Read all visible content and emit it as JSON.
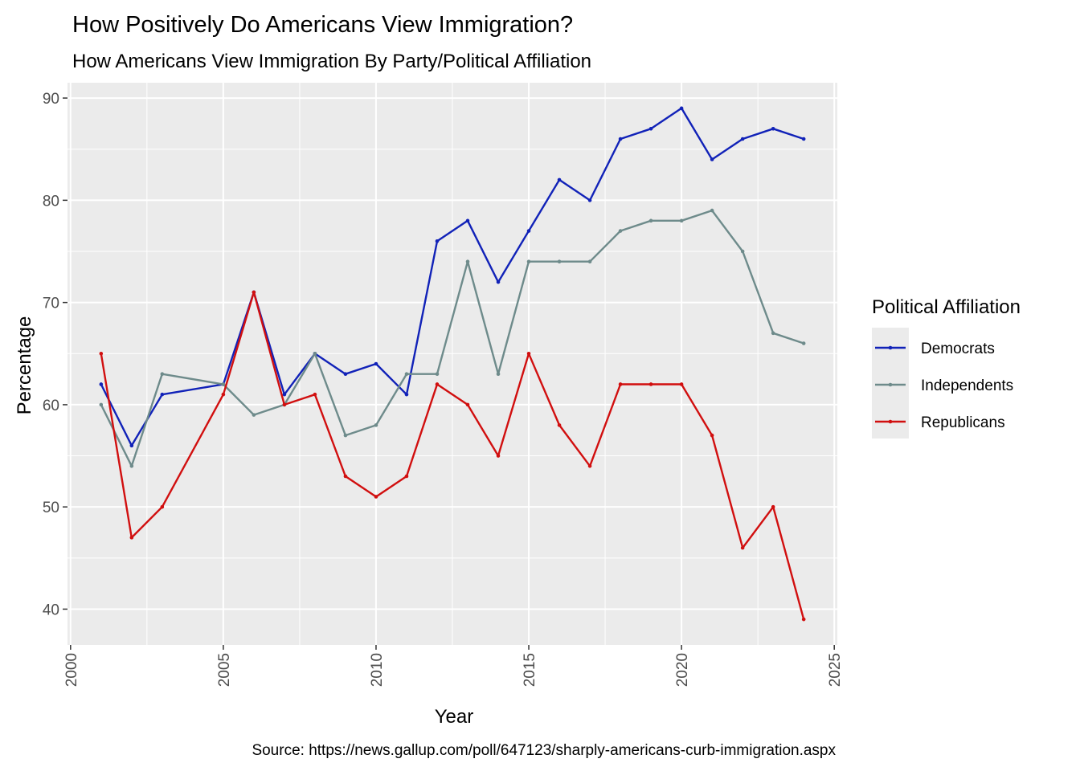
{
  "chart_data": {
    "type": "line",
    "title": "How Positively Do Americans View Immigration?",
    "subtitle": "How Americans View Immigration By Party/Political Affiliation",
    "xlabel": "Year",
    "ylabel": "Percentage",
    "caption": "Source: https://news.gallup.com/poll/647123/sharply-americans-curb-immigration.aspx",
    "xlim": [
      1999.9,
      2025.1
    ],
    "ylim": [
      36.5,
      91.5
    ],
    "x_ticks": [
      2000,
      2005,
      2010,
      2015,
      2020,
      2025
    ],
    "y_ticks": [
      40,
      50,
      60,
      70,
      80,
      90
    ],
    "x_tick_labels": [
      "2000",
      "2005",
      "2010",
      "2015",
      "2020",
      "2025"
    ],
    "y_tick_labels": [
      "40",
      "50",
      "60",
      "70",
      "80",
      "90"
    ],
    "x_tick_rotation": "vertical",
    "grid": true,
    "panel_background": "#ebebeb",
    "legend": {
      "title": "Political Affiliation",
      "position": "right"
    },
    "x": [
      2001,
      2002,
      2003,
      2005,
      2006,
      2007,
      2008,
      2009,
      2010,
      2011,
      2012,
      2013,
      2014,
      2015,
      2016,
      2017,
      2018,
      2019,
      2020,
      2021,
      2022,
      2023,
      2024
    ],
    "series": [
      {
        "name": "Democrats",
        "color": "#1122b8",
        "values": [
          62,
          56,
          61,
          62,
          71,
          61,
          65,
          63,
          64,
          61,
          76,
          78,
          72,
          77,
          82,
          80,
          86,
          87,
          89,
          84,
          86,
          87,
          86
        ]
      },
      {
        "name": "Independents",
        "color": "#6e8b8b",
        "values": [
          60,
          54,
          63,
          62,
          59,
          60,
          65,
          57,
          58,
          63,
          63,
          74,
          63,
          74,
          74,
          74,
          77,
          78,
          78,
          79,
          75,
          67,
          66
        ]
      },
      {
        "name": "Republicans",
        "color": "#d10f0f",
        "values": [
          65,
          47,
          50,
          61,
          71,
          60,
          61,
          53,
          51,
          53,
          62,
          60,
          55,
          65,
          58,
          54,
          62,
          62,
          62,
          57,
          46,
          50,
          39
        ]
      }
    ]
  }
}
